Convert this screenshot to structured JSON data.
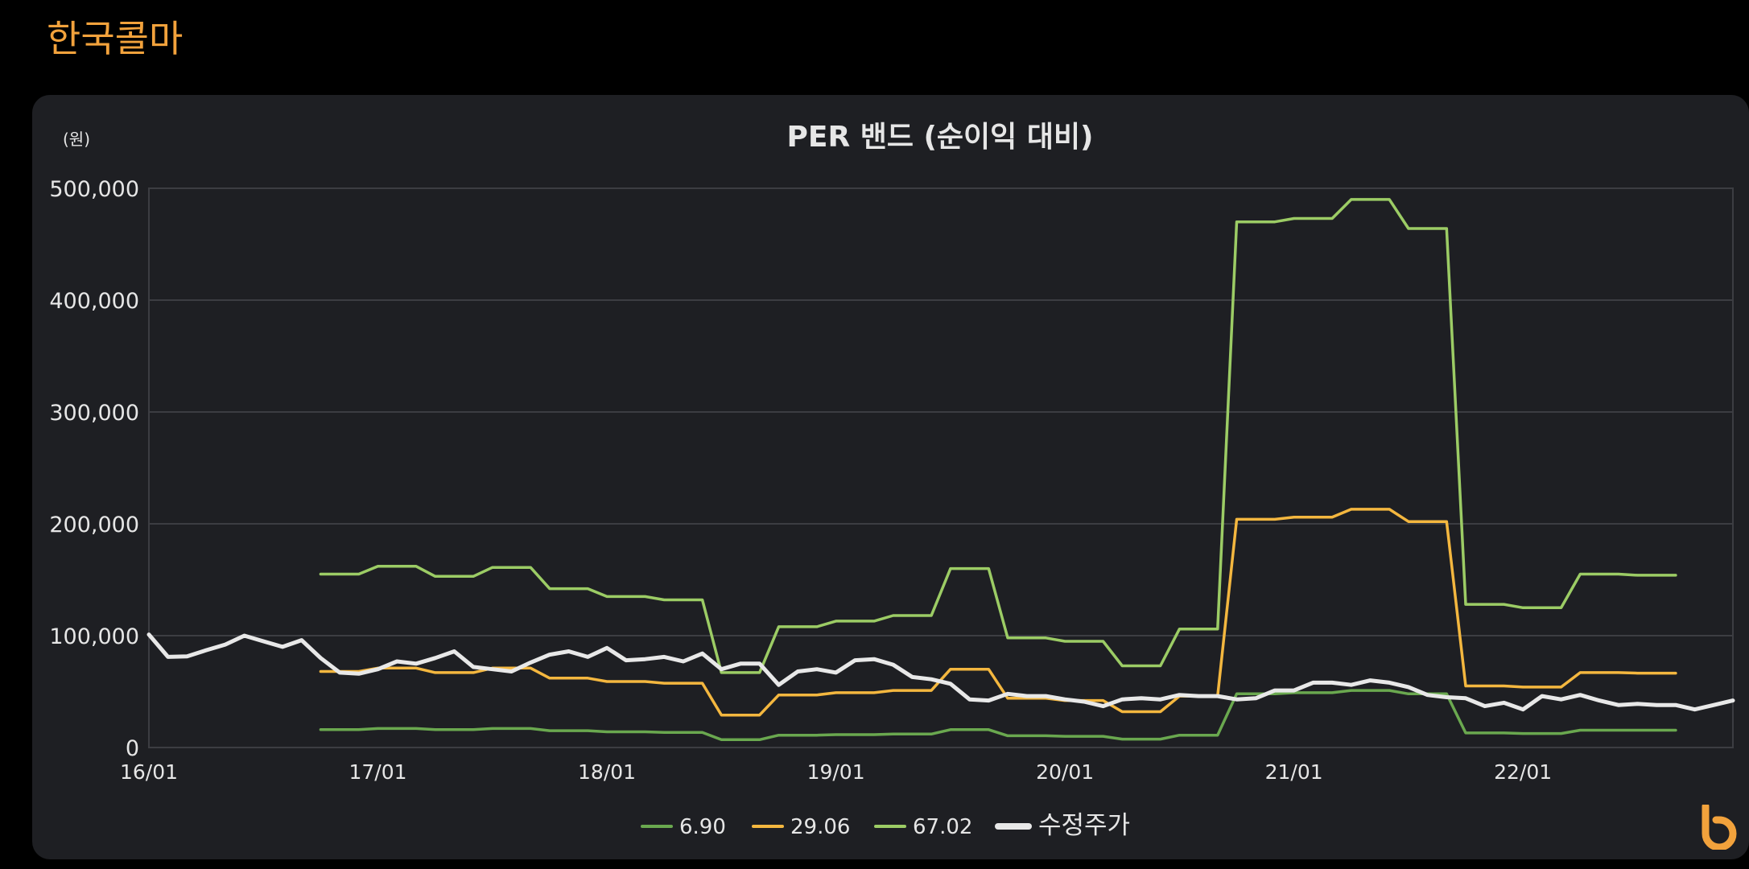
{
  "page": {
    "title": "한국콜마"
  },
  "chart_data": {
    "type": "line",
    "title": "PER 밴드 (순이익 대비)",
    "ylabel": "(원)",
    "xlabel": "",
    "ylim": [
      0,
      500000
    ],
    "xlim": [
      "2016-01",
      "2022-12"
    ],
    "yticks": [
      {
        "value": 0,
        "label": "0"
      },
      {
        "value": 100000,
        "label": "100,000"
      },
      {
        "value": 200000,
        "label": "200,000"
      },
      {
        "value": 300000,
        "label": "300,000"
      },
      {
        "value": 400000,
        "label": "400,000"
      },
      {
        "value": 500000,
        "label": "500,000"
      }
    ],
    "xticks": [
      {
        "value": "2016-01",
        "label": "16/01"
      },
      {
        "value": "2017-01",
        "label": "17/01"
      },
      {
        "value": "2018-01",
        "label": "18/01"
      },
      {
        "value": "2019-01",
        "label": "19/01"
      },
      {
        "value": "2020-01",
        "label": "20/01"
      },
      {
        "value": "2021-01",
        "label": "21/01"
      },
      {
        "value": "2022-01",
        "label": "22/01"
      }
    ],
    "grid": true,
    "legend": "bottom-center",
    "series": [
      {
        "name": "6.90",
        "color": "#6aa84f",
        "points": [
          [
            "2016-10",
            16000
          ],
          [
            "2016-12",
            16000
          ],
          [
            "2017-01",
            17000
          ],
          [
            "2017-03",
            17000
          ],
          [
            "2017-04",
            16000
          ],
          [
            "2017-06",
            16000
          ],
          [
            "2017-07",
            17000
          ],
          [
            "2017-09",
            17000
          ],
          [
            "2017-10",
            15000
          ],
          [
            "2017-12",
            15000
          ],
          [
            "2018-01",
            14000
          ],
          [
            "2018-03",
            14000
          ],
          [
            "2018-04",
            13500
          ],
          [
            "2018-06",
            13500
          ],
          [
            "2018-07",
            7000
          ],
          [
            "2018-09",
            7000
          ],
          [
            "2018-10",
            11000
          ],
          [
            "2018-12",
            11000
          ],
          [
            "2019-01",
            11500
          ],
          [
            "2019-03",
            11500
          ],
          [
            "2019-04",
            12000
          ],
          [
            "2019-06",
            12000
          ],
          [
            "2019-07",
            16000
          ],
          [
            "2019-09",
            16000
          ],
          [
            "2019-10",
            10500
          ],
          [
            "2019-12",
            10500
          ],
          [
            "2020-01",
            10000
          ],
          [
            "2020-03",
            10000
          ],
          [
            "2020-04",
            7500
          ],
          [
            "2020-06",
            7500
          ],
          [
            "2020-07",
            11000
          ],
          [
            "2020-09",
            11000
          ],
          [
            "2020-10",
            48000
          ],
          [
            "2020-12",
            48000
          ],
          [
            "2021-01",
            49000
          ],
          [
            "2021-03",
            49000
          ],
          [
            "2021-04",
            51000
          ],
          [
            "2021-06",
            51000
          ],
          [
            "2021-07",
            48000
          ],
          [
            "2021-09",
            48000
          ],
          [
            "2021-10",
            13000
          ],
          [
            "2021-12",
            13000
          ],
          [
            "2022-01",
            12500
          ],
          [
            "2022-03",
            12500
          ],
          [
            "2022-04",
            15500
          ],
          [
            "2022-06",
            15500
          ],
          [
            "2022-07",
            15500
          ],
          [
            "2022-09",
            15500
          ]
        ]
      },
      {
        "name": "29.06",
        "color": "#f4b73f",
        "points": [
          [
            "2016-10",
            68000
          ],
          [
            "2016-12",
            68000
          ],
          [
            "2017-01",
            71000
          ],
          [
            "2017-03",
            71000
          ],
          [
            "2017-04",
            67000
          ],
          [
            "2017-06",
            67000
          ],
          [
            "2017-07",
            71000
          ],
          [
            "2017-09",
            71000
          ],
          [
            "2017-10",
            62000
          ],
          [
            "2017-12",
            62000
          ],
          [
            "2018-01",
            59000
          ],
          [
            "2018-03",
            59000
          ],
          [
            "2018-04",
            57500
          ],
          [
            "2018-06",
            57500
          ],
          [
            "2018-07",
            29000
          ],
          [
            "2018-09",
            29000
          ],
          [
            "2018-10",
            47000
          ],
          [
            "2018-12",
            47000
          ],
          [
            "2019-01",
            49000
          ],
          [
            "2019-03",
            49000
          ],
          [
            "2019-04",
            51000
          ],
          [
            "2019-06",
            51000
          ],
          [
            "2019-07",
            70000
          ],
          [
            "2019-09",
            70000
          ],
          [
            "2019-10",
            44000
          ],
          [
            "2019-12",
            44000
          ],
          [
            "2020-01",
            42000
          ],
          [
            "2020-03",
            42000
          ],
          [
            "2020-04",
            32000
          ],
          [
            "2020-06",
            32000
          ],
          [
            "2020-07",
            46000
          ],
          [
            "2020-09",
            46000
          ],
          [
            "2020-10",
            204000
          ],
          [
            "2020-12",
            204000
          ],
          [
            "2021-01",
            206000
          ],
          [
            "2021-03",
            206000
          ],
          [
            "2021-04",
            213000
          ],
          [
            "2021-06",
            213000
          ],
          [
            "2021-07",
            202000
          ],
          [
            "2021-09",
            202000
          ],
          [
            "2021-10",
            55000
          ],
          [
            "2021-12",
            55000
          ],
          [
            "2022-01",
            54000
          ],
          [
            "2022-03",
            54000
          ],
          [
            "2022-04",
            67000
          ],
          [
            "2022-06",
            67000
          ],
          [
            "2022-07",
            66500
          ],
          [
            "2022-09",
            66500
          ]
        ]
      },
      {
        "name": "67.02",
        "color": "#9ccc65",
        "points": [
          [
            "2016-10",
            155000
          ],
          [
            "2016-12",
            155000
          ],
          [
            "2017-01",
            162000
          ],
          [
            "2017-03",
            162000
          ],
          [
            "2017-04",
            153000
          ],
          [
            "2017-06",
            153000
          ],
          [
            "2017-07",
            161000
          ],
          [
            "2017-09",
            161000
          ],
          [
            "2017-10",
            142000
          ],
          [
            "2017-12",
            142000
          ],
          [
            "2018-01",
            135000
          ],
          [
            "2018-03",
            135000
          ],
          [
            "2018-04",
            132000
          ],
          [
            "2018-06",
            132000
          ],
          [
            "2018-07",
            67000
          ],
          [
            "2018-09",
            67000
          ],
          [
            "2018-10",
            108000
          ],
          [
            "2018-12",
            108000
          ],
          [
            "2019-01",
            113000
          ],
          [
            "2019-03",
            113000
          ],
          [
            "2019-04",
            118000
          ],
          [
            "2019-06",
            118000
          ],
          [
            "2019-07",
            160000
          ],
          [
            "2019-09",
            160000
          ],
          [
            "2019-10",
            98000
          ],
          [
            "2019-12",
            98000
          ],
          [
            "2020-01",
            95000
          ],
          [
            "2020-03",
            95000
          ],
          [
            "2020-04",
            73000
          ],
          [
            "2020-06",
            73000
          ],
          [
            "2020-07",
            106000
          ],
          [
            "2020-09",
            106000
          ],
          [
            "2020-10",
            470000
          ],
          [
            "2020-12",
            470000
          ],
          [
            "2021-01",
            473000
          ],
          [
            "2021-03",
            473000
          ],
          [
            "2021-04",
            490000
          ],
          [
            "2021-06",
            490000
          ],
          [
            "2021-07",
            464000
          ],
          [
            "2021-09",
            464000
          ],
          [
            "2021-10",
            128000
          ],
          [
            "2021-12",
            128000
          ],
          [
            "2022-01",
            125000
          ],
          [
            "2022-03",
            125000
          ],
          [
            "2022-04",
            155000
          ],
          [
            "2022-06",
            155000
          ],
          [
            "2022-07",
            154000
          ],
          [
            "2022-09",
            154000
          ]
        ]
      },
      {
        "name": "수정주가",
        "color": "#e8e8e8",
        "points": [
          [
            "2016-01",
            101000
          ],
          [
            "2016-02",
            81000
          ],
          [
            "2016-03",
            81500
          ],
          [
            "2016-04",
            87000
          ],
          [
            "2016-05",
            92000
          ],
          [
            "2016-06",
            100000
          ],
          [
            "2016-07",
            95000
          ],
          [
            "2016-08",
            90000
          ],
          [
            "2016-09",
            96000
          ],
          [
            "2016-10",
            80000
          ],
          [
            "2016-11",
            67000
          ],
          [
            "2016-12",
            66000
          ],
          [
            "2017-01",
            70000
          ],
          [
            "2017-02",
            77000
          ],
          [
            "2017-03",
            75000
          ],
          [
            "2017-04",
            80000
          ],
          [
            "2017-05",
            86000
          ],
          [
            "2017-06",
            72000
          ],
          [
            "2017-07",
            70000
          ],
          [
            "2017-08",
            68000
          ],
          [
            "2017-09",
            76000
          ],
          [
            "2017-10",
            83000
          ],
          [
            "2017-11",
            86000
          ],
          [
            "2017-12",
            81000
          ],
          [
            "2018-01",
            89000
          ],
          [
            "2018-02",
            78000
          ],
          [
            "2018-03",
            79000
          ],
          [
            "2018-04",
            81000
          ],
          [
            "2018-05",
            77000
          ],
          [
            "2018-06",
            84000
          ],
          [
            "2018-07",
            70000
          ],
          [
            "2018-08",
            75000
          ],
          [
            "2018-09",
            75000
          ],
          [
            "2018-10",
            56000
          ],
          [
            "2018-11",
            68000
          ],
          [
            "2018-12",
            70000
          ],
          [
            "2019-01",
            67000
          ],
          [
            "2019-02",
            78000
          ],
          [
            "2019-03",
            79000
          ],
          [
            "2019-04",
            74000
          ],
          [
            "2019-05",
            63000
          ],
          [
            "2019-06",
            61000
          ],
          [
            "2019-07",
            57000
          ],
          [
            "2019-08",
            43000
          ],
          [
            "2019-09",
            42000
          ],
          [
            "2019-10",
            48000
          ],
          [
            "2019-11",
            46000
          ],
          [
            "2019-12",
            46000
          ],
          [
            "2020-01",
            43000
          ],
          [
            "2020-02",
            41000
          ],
          [
            "2020-03",
            37000
          ],
          [
            "2020-04",
            43000
          ],
          [
            "2020-05",
            44000
          ],
          [
            "2020-06",
            43000
          ],
          [
            "2020-07",
            47000
          ],
          [
            "2020-08",
            46000
          ],
          [
            "2020-09",
            46000
          ],
          [
            "2020-10",
            43000
          ],
          [
            "2020-11",
            44000
          ],
          [
            "2020-12",
            51000
          ],
          [
            "2021-01",
            51000
          ],
          [
            "2021-02",
            58000
          ],
          [
            "2021-03",
            58000
          ],
          [
            "2021-04",
            56000
          ],
          [
            "2021-05",
            60000
          ],
          [
            "2021-06",
            58000
          ],
          [
            "2021-07",
            54000
          ],
          [
            "2021-08",
            47000
          ],
          [
            "2021-09",
            45000
          ],
          [
            "2021-10",
            44000
          ],
          [
            "2021-11",
            37000
          ],
          [
            "2021-12",
            40000
          ],
          [
            "2022-01",
            34000
          ],
          [
            "2022-02",
            46000
          ],
          [
            "2022-03",
            43000
          ],
          [
            "2022-04",
            47000
          ],
          [
            "2022-05",
            42000
          ],
          [
            "2022-06",
            38000
          ],
          [
            "2022-07",
            39000
          ],
          [
            "2022-08",
            38000
          ],
          [
            "2022-09",
            38000
          ],
          [
            "2022-10",
            34000
          ],
          [
            "2022-11",
            38000
          ],
          [
            "2022-12",
            42000
          ]
        ]
      }
    ]
  }
}
